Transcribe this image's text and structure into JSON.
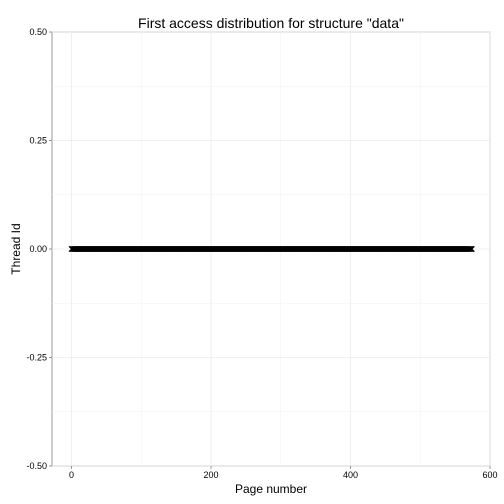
{
  "chart_data": {
    "type": "scatter",
    "title": "First access distribution for structure \"data\"",
    "xlabel": "Page number",
    "ylabel": "Thread Id",
    "xlim": [
      -28,
      600
    ],
    "ylim": [
      -0.5,
      0.5
    ],
    "x_ticks": [
      0,
      200,
      400,
      600
    ],
    "x_tick_labels": [
      "0",
      "200",
      "400",
      "600"
    ],
    "y_ticks": [
      -0.5,
      -0.25,
      0,
      0.25,
      0.5
    ],
    "y_tick_labels": [
      "-0.50",
      "-0.25",
      "0.00",
      "0.25",
      "0.50"
    ],
    "series": [
      {
        "x_range": [
          0,
          574
        ],
        "y": 0,
        "marker": "cross",
        "color": "#000000"
      }
    ],
    "grid": true,
    "legend": "none"
  }
}
